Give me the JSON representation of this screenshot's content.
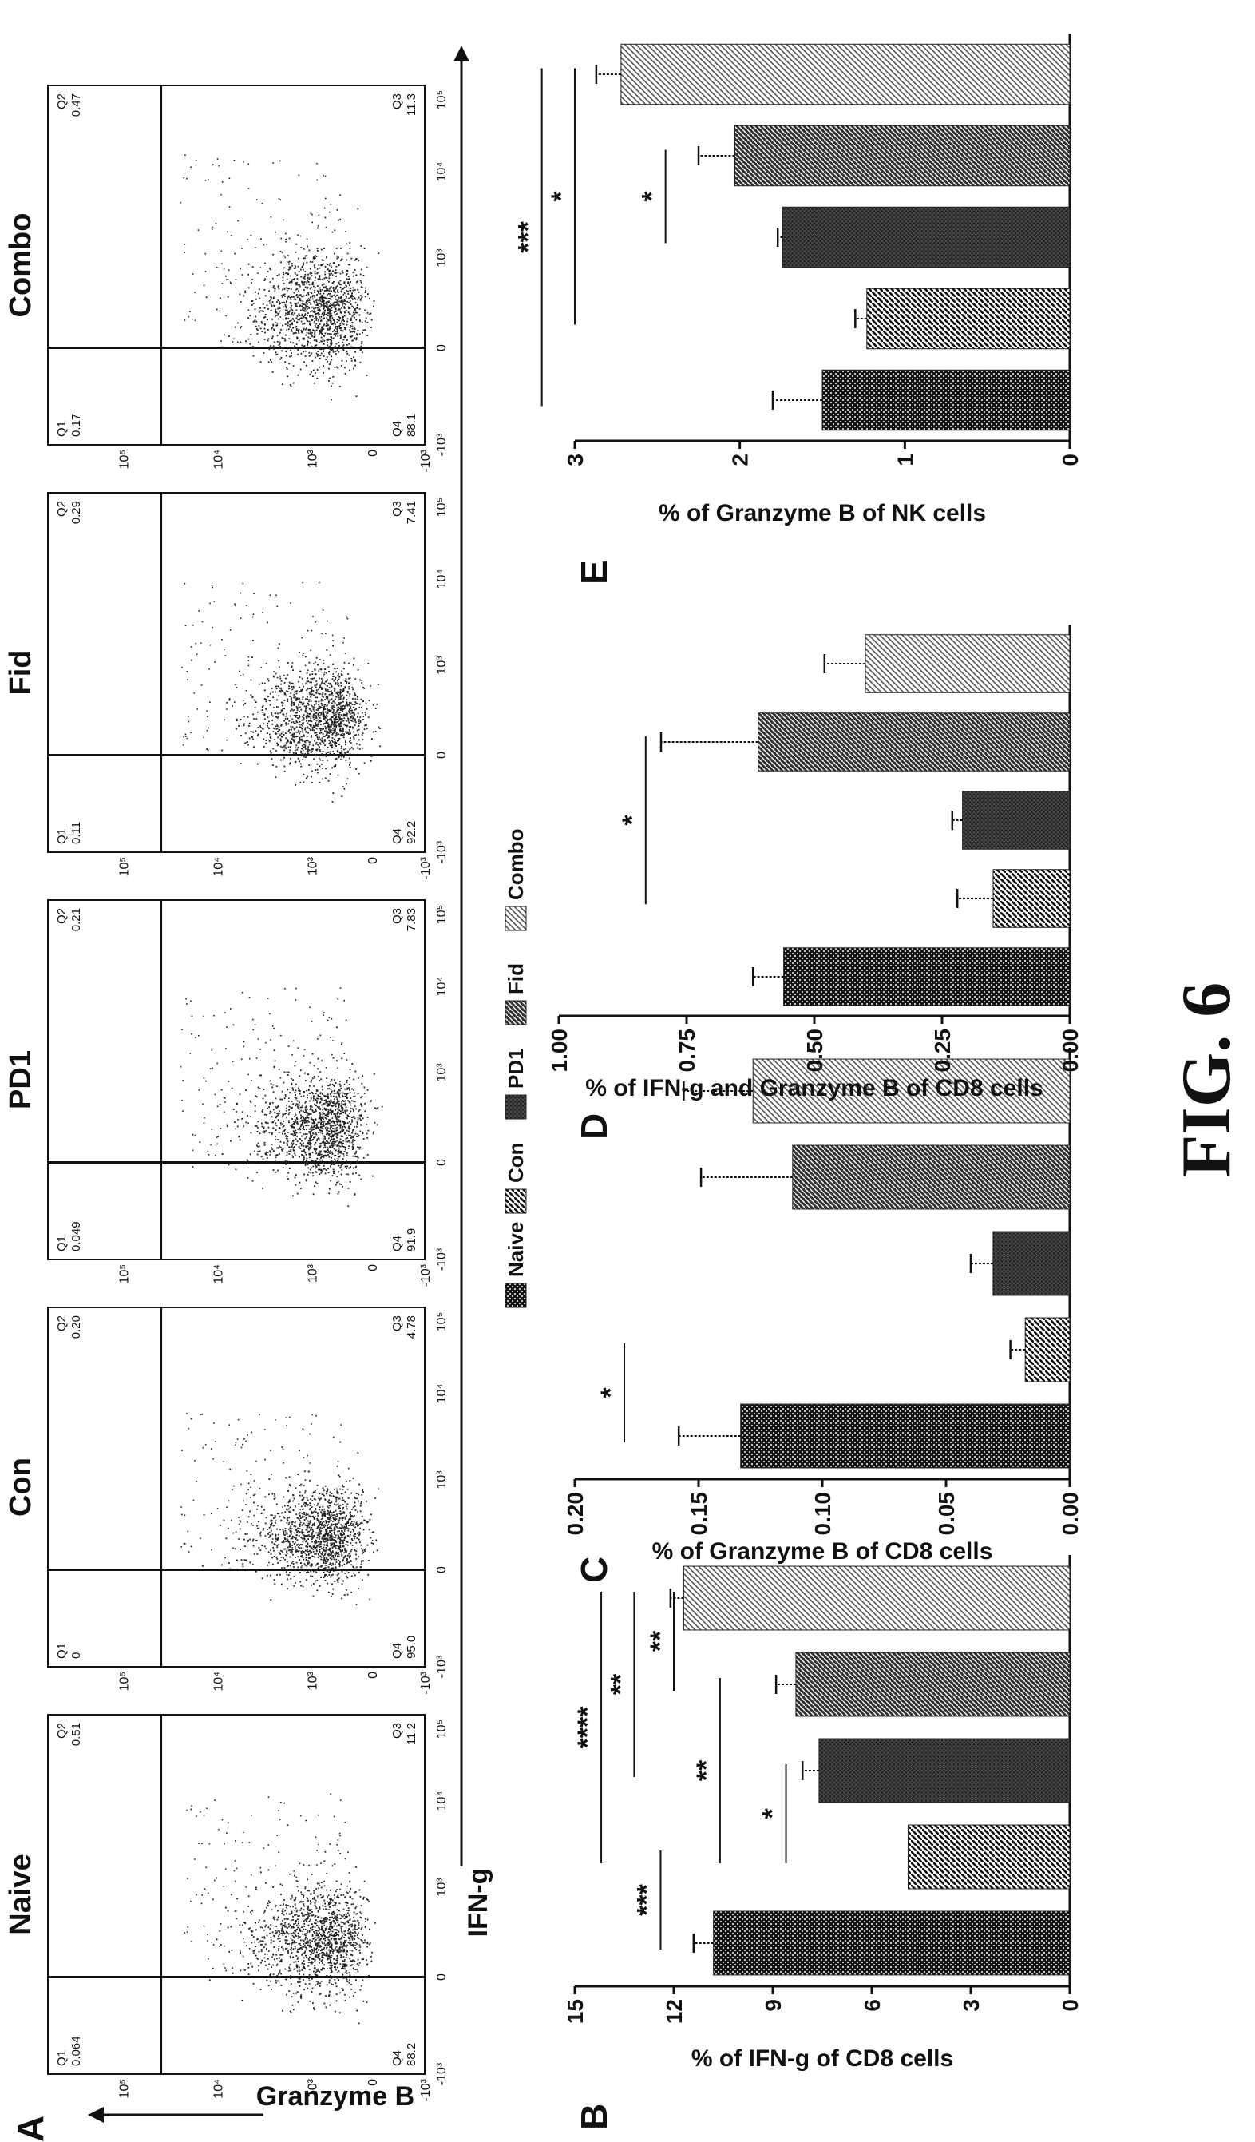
{
  "figure_label": "FIG. 6",
  "colors": {
    "ink": "#111111",
    "dots": "#222222"
  },
  "chart_data": [
    {
      "panel": "A",
      "type": "scatter",
      "xlabel": "IFN-g",
      "ylabel": "Granzyme B",
      "x_ticks": [
        "-10³",
        "0",
        "10³",
        "10⁴",
        "10⁵"
      ],
      "y_ticks": [
        "-10³",
        "0",
        "10³",
        "10⁴",
        "10⁵"
      ],
      "plots": [
        {
          "title": "Naive",
          "q1": "0.064",
          "q2": "0.51",
          "q3": "11.2",
          "q4": "88.2",
          "spread": 1.0
        },
        {
          "title": "Con",
          "q1": "0",
          "q2": "0.20",
          "q3": "4.78",
          "q4": "95.0",
          "spread": 0.85
        },
        {
          "title": "PD1",
          "q1": "0.049",
          "q2": "0.21",
          "q3": "7.83",
          "q4": "91.9",
          "spread": 0.95
        },
        {
          "title": "Fid",
          "q1": "0.11",
          "q2": "0.29",
          "q3": "7.41",
          "q4": "92.2",
          "spread": 0.95
        },
        {
          "title": "Combo",
          "q1": "0.17",
          "q2": "0.47",
          "q3": "11.3",
          "q4": "88.1",
          "spread": 1.05
        }
      ],
      "quadrant_labels": [
        "Q1",
        "Q2",
        "Q3",
        "Q4"
      ]
    },
    {
      "panel": "B",
      "type": "bar",
      "ylabel": "% of IFN-g of CD8 cells",
      "categories": [
        "Naive",
        "Con",
        "PD1",
        "Fid",
        "Combo"
      ],
      "values": [
        10.8,
        4.9,
        7.6,
        8.3,
        11.7
      ],
      "errors": [
        0.6,
        0.0,
        0.5,
        0.6,
        0.4
      ],
      "ylim": [
        0,
        15
      ],
      "yticks": [
        "0",
        "3",
        "6",
        "9",
        "12",
        "15"
      ],
      "significance": [
        {
          "label": "***",
          "from": 0,
          "to": 1,
          "level": 12.4
        },
        {
          "label": "*",
          "from": 1,
          "to": 2,
          "level": 8.6
        },
        {
          "label": "**",
          "from": 1,
          "to": 3,
          "level": 10.6
        },
        {
          "label": "**",
          "from": 3,
          "to": 4,
          "level": 12.0
        },
        {
          "label": "**",
          "from": 2,
          "to": 4,
          "level": 13.2
        },
        {
          "label": "****",
          "from": 1,
          "to": 4,
          "level": 14.2
        }
      ]
    },
    {
      "panel": "C",
      "type": "bar",
      "ylabel": "% of Granzyme B of CD8 cells",
      "categories": [
        "Naive",
        "Con",
        "PD1",
        "Fid",
        "Combo"
      ],
      "values": [
        0.133,
        0.018,
        0.031,
        0.112,
        0.128
      ],
      "errors": [
        0.025,
        0.006,
        0.009,
        0.037,
        0.028
      ],
      "ylim": [
        0,
        0.2
      ],
      "yticks": [
        "0.00",
        "0.05",
        "0.10",
        "0.15",
        "0.20"
      ],
      "significance": [
        {
          "label": "*",
          "from": 0,
          "to": 1,
          "level": 0.18
        }
      ]
    },
    {
      "panel": "D",
      "type": "bar",
      "ylabel": "% of IFN-g and Granzyme B of CD8 cells",
      "categories": [
        "Naive",
        "Con",
        "PD1",
        "Fid",
        "Combo"
      ],
      "values": [
        0.56,
        0.15,
        0.21,
        0.61,
        0.4
      ],
      "errors": [
        0.06,
        0.07,
        0.02,
        0.19,
        0.08
      ],
      "ylim": [
        0,
        1.0
      ],
      "yticks": [
        "0.00",
        "0.25",
        "0.50",
        "0.75",
        "1.00"
      ],
      "significance": [
        {
          "label": "*",
          "from": 1,
          "to": 3,
          "level": 0.83
        }
      ]
    },
    {
      "panel": "E",
      "type": "bar",
      "ylabel": "% of Granzyme B of NK cells",
      "categories": [
        "Naive",
        "Con",
        "PD1",
        "Fid",
        "Combo"
      ],
      "values": [
        1.5,
        1.23,
        1.74,
        2.03,
        2.72
      ],
      "errors": [
        0.3,
        0.07,
        0.03,
        0.22,
        0.15
      ],
      "ylim": [
        0,
        3
      ],
      "yticks": [
        "0",
        "1",
        "2",
        "3"
      ],
      "significance": [
        {
          "label": "*",
          "from": 2,
          "to": 3,
          "level": 2.45
        },
        {
          "label": "*",
          "from": 1,
          "to": 4,
          "level": 3.0
        },
        {
          "label": "***",
          "from": 0,
          "to": 4,
          "level": 3.2
        }
      ]
    }
  ],
  "legend": {
    "placement": "center",
    "items": [
      "Naive",
      "Con",
      "PD1",
      "Fid",
      "Combo"
    ]
  }
}
